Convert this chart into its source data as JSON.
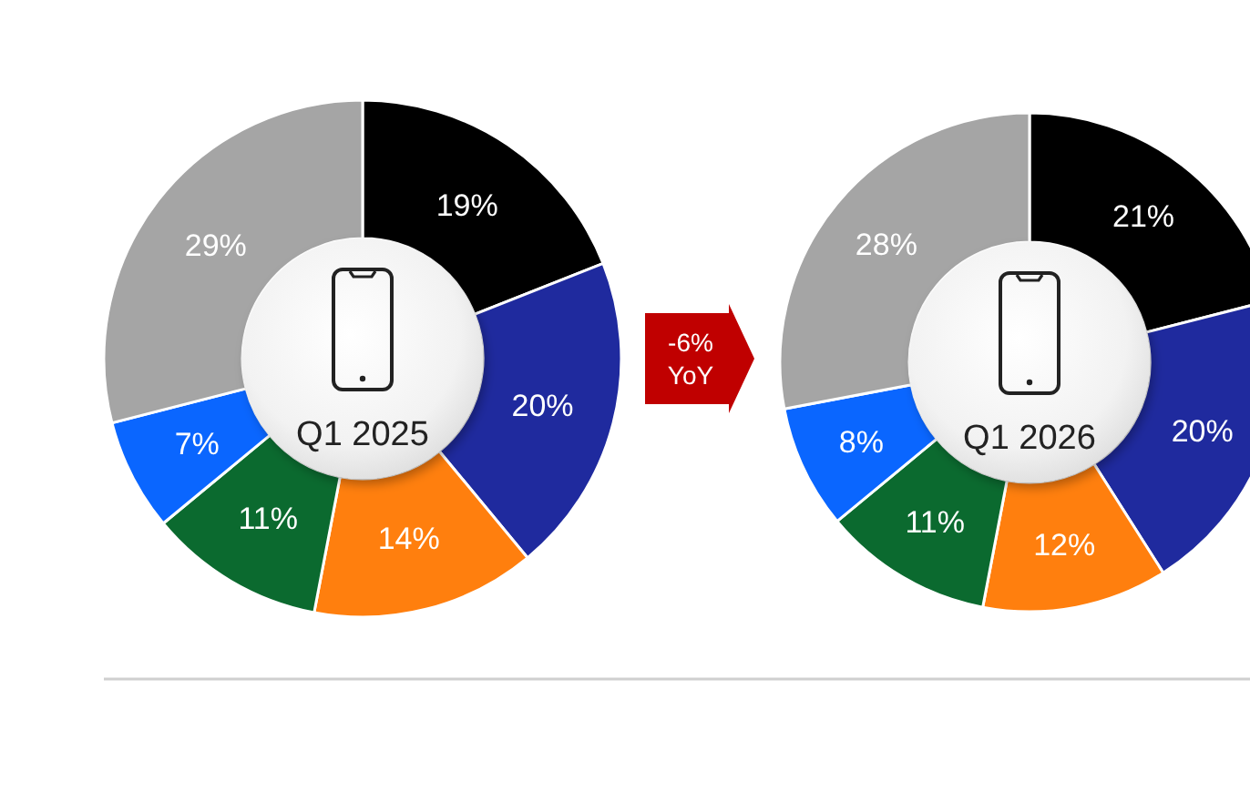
{
  "chart_data": [
    {
      "type": "donut",
      "title": "Q1 2025",
      "categories": [
        null,
        null,
        null,
        null,
        null,
        null
      ],
      "values": [
        19,
        20,
        14,
        11,
        7,
        29
      ],
      "colors": [
        "#000000",
        "#1f2a9e",
        "#ff7f0e",
        "#0b6a2f",
        "#0a66ff",
        "#a5a5a5"
      ],
      "value_labels": [
        "19%",
        "20%",
        "14%",
        "11%",
        "7%",
        "29%"
      ]
    },
    {
      "type": "donut",
      "title": "Q1 2026",
      "categories": [
        null,
        null,
        null,
        null,
        null,
        null
      ],
      "values": [
        21,
        20,
        12,
        11,
        8,
        28
      ],
      "colors": [
        "#000000",
        "#1f2a9e",
        "#ff7f0e",
        "#0b6a2f",
        "#0a66ff",
        "#a5a5a5"
      ],
      "value_labels": [
        "21%",
        "20%",
        "12%",
        "11%",
        "8%",
        "28%"
      ],
      "annotations": [
        "-6% YoY"
      ]
    }
  ]
}
